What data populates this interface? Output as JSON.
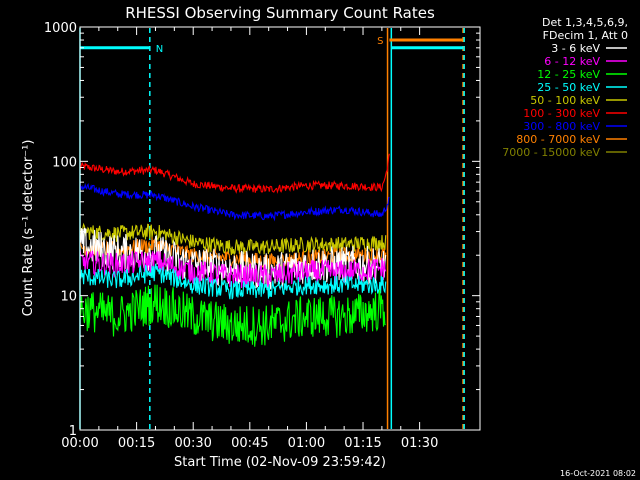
{
  "chart_data": {
    "type": "line",
    "title": "RHESSI Observing Summary Count Rates",
    "xlabel": "Start Time (02-Nov-09 23:59:42)",
    "ylabel": "Count Rate (s⁻¹ detector⁻¹)",
    "y_scale": "log",
    "ylim": [
      1,
      1000
    ],
    "x_unit": "minutes since start",
    "xlim": [
      0,
      106
    ],
    "x_ticks": [
      {
        "value": 0,
        "label": "00:00"
      },
      {
        "value": 15,
        "label": "00:15"
      },
      {
        "value": 30,
        "label": "00:30"
      },
      {
        "value": 45,
        "label": "00:45"
      },
      {
        "value": 60,
        "label": "01:00"
      },
      {
        "value": 75,
        "label": "01:15"
      },
      {
        "value": 90,
        "label": "01:30"
      }
    ],
    "y_ticks": [
      {
        "value": 1,
        "label": "1"
      },
      {
        "value": 10,
        "label": "10"
      },
      {
        "value": 100,
        "label": "100"
      },
      {
        "value": 1000,
        "label": "1000"
      }
    ],
    "legend_header": [
      "Det 1,3,4,5,6,9,",
      "FDecim 1, Att 0"
    ],
    "legend_position": "right",
    "series": [
      {
        "name": "3 - 6 keV",
        "color": "#ffffff",
        "x": [
          0,
          10,
          20,
          30,
          40,
          50,
          60,
          70,
          81
        ],
        "values": [
          24,
          21,
          21,
          17,
          16,
          15,
          17,
          17,
          17
        ],
        "noise": 0.14
      },
      {
        "name": "6 - 12 keV",
        "color": "#ff00ff",
        "x": [
          0,
          10,
          20,
          30,
          40,
          50,
          60,
          70,
          81
        ],
        "values": [
          18,
          17,
          18,
          15,
          14,
          14,
          15,
          15,
          16
        ],
        "noise": 0.09
      },
      {
        "name": "12 - 25 keV",
        "color": "#00ff00",
        "x": [
          0,
          10,
          20,
          30,
          40,
          50,
          60,
          70,
          81
        ],
        "values": [
          8,
          7,
          9,
          7,
          6,
          6,
          7,
          7,
          8
        ],
        "noise": 0.16
      },
      {
        "name": "25 - 50 keV",
        "color": "#00ffff",
        "x": [
          0,
          10,
          20,
          30,
          40,
          50,
          60,
          70,
          81
        ],
        "values": [
          14,
          13,
          15,
          12,
          11,
          11,
          12,
          12,
          12
        ],
        "noise": 0.07
      },
      {
        "name": "50 - 100 keV",
        "color": "#c8c800",
        "x": [
          0,
          10,
          20,
          30,
          40,
          50,
          60,
          70,
          81
        ],
        "values": [
          30,
          29,
          30,
          25,
          23,
          23,
          24,
          24,
          25
        ],
        "noise": 0.06
      },
      {
        "name": "100 - 300 keV",
        "color": "#ff0000",
        "x": [
          0,
          10,
          20,
          30,
          40,
          50,
          60,
          70,
          80,
          81,
          82
        ],
        "values": [
          92,
          84,
          86,
          68,
          63,
          62,
          66,
          66,
          64,
          78,
          110
        ],
        "noise": 0.03
      },
      {
        "name": "300 - 800 keV",
        "color": "#0000ff",
        "x": [
          0,
          10,
          20,
          30,
          40,
          50,
          60,
          70,
          80,
          81,
          82
        ],
        "values": [
          65,
          57,
          56,
          46,
          40,
          39,
          42,
          44,
          40,
          45,
          52
        ],
        "noise": 0.03
      },
      {
        "name": "800 - 7000 keV",
        "color": "#ff8000",
        "x": [
          0,
          10,
          20,
          30,
          40,
          50,
          60,
          70,
          81
        ],
        "values": [
          23,
          22,
          24,
          20,
          19,
          18,
          19,
          20,
          20
        ],
        "noise": 0.06
      },
      {
        "name": "7000 - 15000 keV",
        "color": "#808000",
        "x": [],
        "values": []
      }
    ],
    "markers": [
      {
        "label": "N",
        "color": "#00ffff",
        "y": 700,
        "segments": [
          [
            0,
            18.5
          ],
          [
            82.5,
            101.5
          ]
        ]
      },
      {
        "label": "S",
        "color": "#ff8000",
        "y": 800,
        "segments": [
          [
            82,
            101.5
          ]
        ]
      }
    ],
    "vlines": [
      {
        "x": 0,
        "color": "#00ffff",
        "dashed": false
      },
      {
        "x": 18.5,
        "color": "#00ffff",
        "dashed": true
      },
      {
        "x": 81.5,
        "color": "#ff8000",
        "dashed": false
      },
      {
        "x": 82.5,
        "color": "#00ffff",
        "dashed": false
      },
      {
        "x": 101.5,
        "color": "#ff8000",
        "dashed": true
      },
      {
        "x": 101.8,
        "color": "#00ffff",
        "dashed": true
      }
    ]
  },
  "timestamp": "16-Oct-2021 08:02"
}
